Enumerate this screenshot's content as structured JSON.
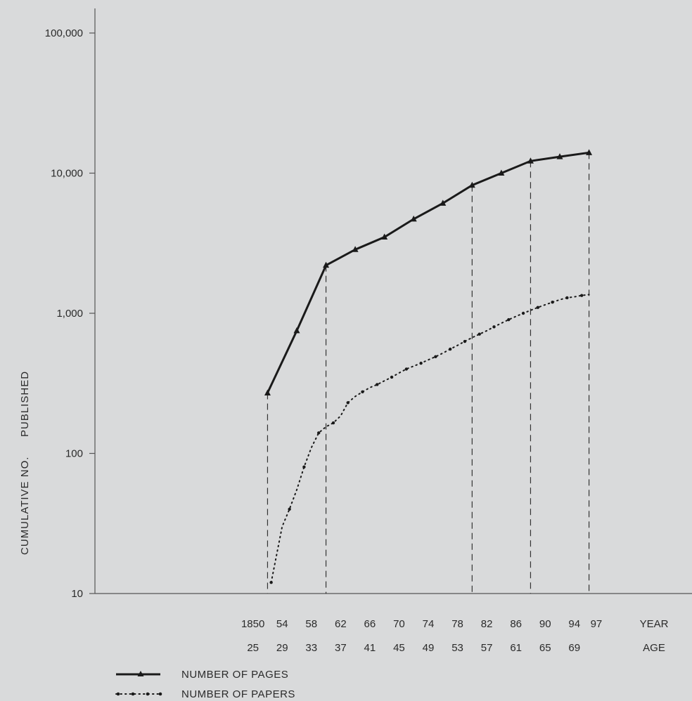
{
  "chart_data": {
    "type": "line",
    "title": "",
    "ylabel_left": "CUMULATIVE NO.",
    "ylabel_right": "PUBLISHED",
    "yscale": "log",
    "ylim": [
      10,
      100000
    ],
    "xlim": [
      1838,
      1910
    ],
    "y_tick_labels": [
      "10",
      "100",
      "1,000",
      "10,000",
      "100,000"
    ],
    "y_tick_values": [
      10,
      100,
      1000,
      10000,
      100000
    ],
    "x_ticks": [
      {
        "x": 1850,
        "year": "1850",
        "age": "25"
      },
      {
        "x": 1854,
        "year": "54",
        "age": "29"
      },
      {
        "x": 1858,
        "year": "58",
        "age": "33"
      },
      {
        "x": 1862,
        "year": "62",
        "age": "37"
      },
      {
        "x": 1866,
        "year": "66",
        "age": "41"
      },
      {
        "x": 1870,
        "year": "70",
        "age": "45"
      },
      {
        "x": 1874,
        "year": "74",
        "age": "49"
      },
      {
        "x": 1878,
        "year": "78",
        "age": "53"
      },
      {
        "x": 1882,
        "year": "82",
        "age": "57"
      },
      {
        "x": 1886,
        "year": "86",
        "age": "61"
      },
      {
        "x": 1890,
        "year": "90",
        "age": "65"
      },
      {
        "x": 1894,
        "year": "94",
        "age": "69"
      },
      {
        "x": 1897,
        "year": "97",
        "age": ""
      }
    ],
    "row_label_year": "YEAR",
    "row_label_age": "AGE",
    "vertical_reference_years": [
      1852,
      1860,
      1880,
      1888,
      1896
    ],
    "series": [
      {
        "name": "NUMBER OF PAGES",
        "style": "solid-triangle",
        "color": "#1a1a1a",
        "points": [
          [
            1852,
            270
          ],
          [
            1856,
            750
          ],
          [
            1860,
            2200
          ],
          [
            1864,
            2850
          ],
          [
            1868,
            3500
          ],
          [
            1872,
            4700
          ],
          [
            1876,
            6100
          ],
          [
            1880,
            8200
          ],
          [
            1884,
            10000
          ],
          [
            1888,
            12200
          ],
          [
            1892,
            13100
          ],
          [
            1896,
            14000
          ]
        ]
      },
      {
        "name": "NUMBER OF PAPERS",
        "style": "dotted",
        "color": "#1a1a1a",
        "points": [
          [
            1852.5,
            12
          ],
          [
            1854,
            30
          ],
          [
            1855,
            40
          ],
          [
            1856,
            55
          ],
          [
            1857,
            80
          ],
          [
            1858,
            110
          ],
          [
            1859,
            140
          ],
          [
            1860,
            155
          ],
          [
            1861,
            165
          ],
          [
            1862,
            185
          ],
          [
            1863,
            230
          ],
          [
            1864,
            255
          ],
          [
            1865,
            275
          ],
          [
            1866,
            295
          ],
          [
            1867,
            310
          ],
          [
            1868,
            330
          ],
          [
            1869,
            350
          ],
          [
            1870,
            375
          ],
          [
            1871,
            400
          ],
          [
            1872,
            420
          ],
          [
            1873,
            440
          ],
          [
            1874,
            465
          ],
          [
            1875,
            490
          ],
          [
            1876,
            520
          ],
          [
            1877,
            555
          ],
          [
            1878,
            590
          ],
          [
            1879,
            630
          ],
          [
            1880,
            670
          ],
          [
            1881,
            710
          ],
          [
            1882,
            750
          ],
          [
            1883,
            800
          ],
          [
            1884,
            850
          ],
          [
            1885,
            900
          ],
          [
            1886,
            950
          ],
          [
            1887,
            1000
          ],
          [
            1888,
            1050
          ],
          [
            1889,
            1100
          ],
          [
            1890,
            1150
          ],
          [
            1891,
            1200
          ],
          [
            1892,
            1250
          ],
          [
            1893,
            1290
          ],
          [
            1894,
            1310
          ],
          [
            1895,
            1340
          ],
          [
            1896,
            1360
          ]
        ]
      }
    ],
    "legend": [
      {
        "label": "NUMBER OF PAGES",
        "style": "solid-triangle"
      },
      {
        "label": "NUMBER OF PAPERS",
        "style": "dotted"
      }
    ]
  }
}
